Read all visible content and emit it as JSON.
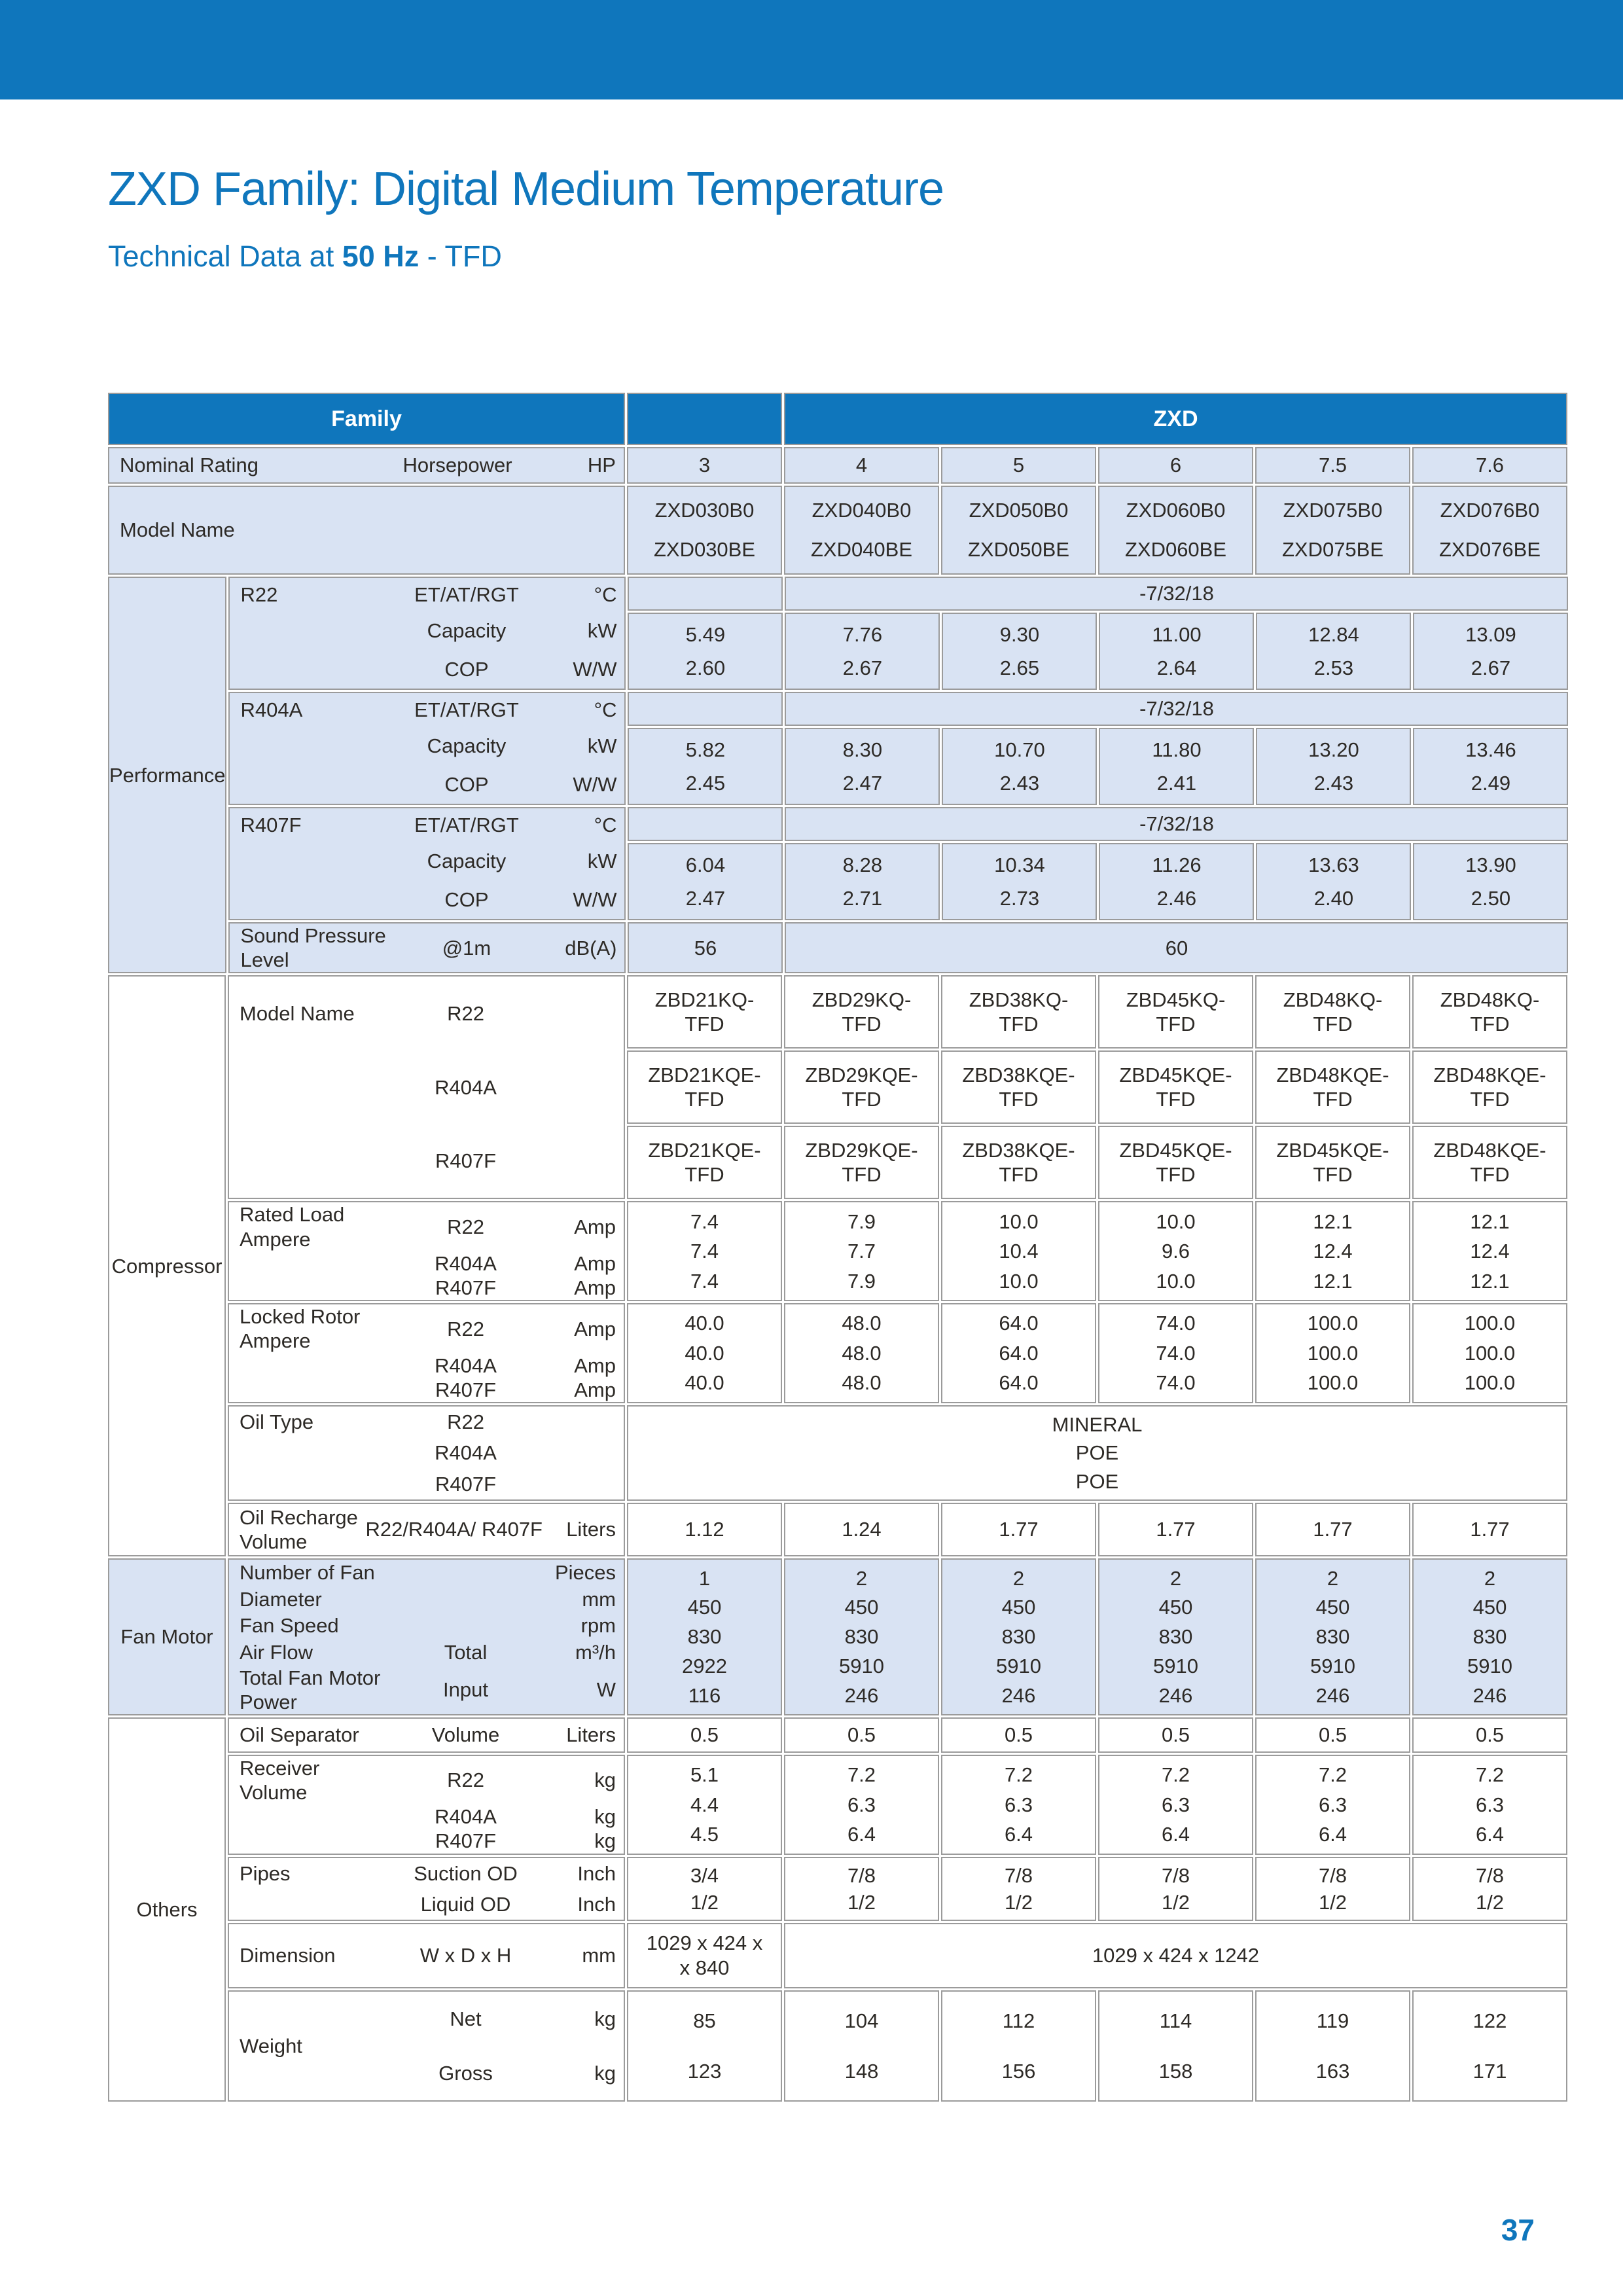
{
  "page": {
    "title": "ZXD Family: Digital Medium Temperature",
    "subtitle": {
      "prefix": "Technical Data at ",
      "bold": "50 Hz",
      "suffix": " - TFD"
    },
    "page_number": "37"
  },
  "colors": {
    "accent": "#0f76bc",
    "tint": "#d9e3f3",
    "border": "#9b9b9b",
    "text": "#2d2a26"
  },
  "table": {
    "header": {
      "family": "Family",
      "group": "ZXD"
    },
    "columns": [
      "3",
      "4",
      "5",
      "6",
      "7.5",
      "7.6"
    ],
    "sections": [
      {
        "label": null,
        "tint": true,
        "bands": [
          {
            "id": "nominal-rating",
            "kind": "row",
            "label": {
              "name": "Nominal Rating",
              "sub": "Horsepower",
              "unit": "HP"
            },
            "cells": {
              "type": "each",
              "values": [
                "3",
                "4",
                "5",
                "6",
                "7.5",
                "7.6"
              ]
            }
          },
          {
            "id": "model-name",
            "kind": "row",
            "label": {
              "name": "Model Name",
              "sub": "",
              "unit": ""
            },
            "cells": {
              "type": "stack",
              "columns": [
                [
                  "ZXD030B0",
                  "ZXD030BE"
                ],
                [
                  "ZXD040B0",
                  "ZXD040BE"
                ],
                [
                  "ZXD050B0",
                  "ZXD050BE"
                ],
                [
                  "ZXD060B0",
                  "ZXD060BE"
                ],
                [
                  "ZXD075B0",
                  "ZXD075BE"
                ],
                [
                  "ZXD076B0",
                  "ZXD076BE"
                ]
              ]
            }
          }
        ]
      },
      {
        "label": "Performance",
        "tint": true,
        "bands": [
          {
            "id": "r22",
            "kind": "group",
            "label": {
              "name": "R22",
              "lines": [
                {
                  "sub": "ET/AT/RGT",
                  "unit": "°C"
                },
                {
                  "sub": "Capacity",
                  "unit": "kW"
                },
                {
                  "sub": "COP",
                  "unit": "W/W"
                }
              ]
            },
            "rows": [
              {
                "id": "r22-cond",
                "cells": {
                  "type": "split",
                  "first": "",
                  "merged": "-7/32/18"
                }
              },
              {
                "id": "r22-vals",
                "cells": {
                  "type": "stack",
                  "columns": [
                    [
                      "5.49",
                      "2.60"
                    ],
                    [
                      "7.76",
                      "2.67"
                    ],
                    [
                      "9.30",
                      "2.65"
                    ],
                    [
                      "11.00",
                      "2.64"
                    ],
                    [
                      "12.84",
                      "2.53"
                    ],
                    [
                      "13.09",
                      "2.67"
                    ]
                  ]
                }
              }
            ]
          },
          {
            "id": "r404a",
            "kind": "group",
            "label": {
              "name": "R404A",
              "lines": [
                {
                  "sub": "ET/AT/RGT",
                  "unit": "°C"
                },
                {
                  "sub": "Capacity",
                  "unit": "kW"
                },
                {
                  "sub": "COP",
                  "unit": "W/W"
                }
              ]
            },
            "rows": [
              {
                "id": "r404a-cond",
                "cells": {
                  "type": "split",
                  "first": "",
                  "merged": "-7/32/18"
                }
              },
              {
                "id": "r404a-vals",
                "cells": {
                  "type": "stack",
                  "columns": [
                    [
                      "5.82",
                      "2.45"
                    ],
                    [
                      "8.30",
                      "2.47"
                    ],
                    [
                      "10.70",
                      "2.43"
                    ],
                    [
                      "11.80",
                      "2.41"
                    ],
                    [
                      "13.20",
                      "2.43"
                    ],
                    [
                      "13.46",
                      "2.49"
                    ]
                  ]
                }
              }
            ]
          },
          {
            "id": "r407f",
            "kind": "group",
            "label": {
              "name": "R407F",
              "lines": [
                {
                  "sub": "ET/AT/RGT",
                  "unit": "°C"
                },
                {
                  "sub": "Capacity",
                  "unit": "kW"
                },
                {
                  "sub": "COP",
                  "unit": "W/W"
                }
              ]
            },
            "rows": [
              {
                "id": "r407f-cond",
                "cells": {
                  "type": "split",
                  "first": "",
                  "merged": "-7/32/18"
                }
              },
              {
                "id": "r407f-vals",
                "cells": {
                  "type": "stack",
                  "columns": [
                    [
                      "6.04",
                      "2.47"
                    ],
                    [
                      "8.28",
                      "2.71"
                    ],
                    [
                      "10.34",
                      "2.73"
                    ],
                    [
                      "11.26",
                      "2.46"
                    ],
                    [
                      "13.63",
                      "2.40"
                    ],
                    [
                      "13.90",
                      "2.50"
                    ]
                  ]
                }
              }
            ]
          },
          {
            "id": "sound",
            "kind": "row",
            "label": {
              "name": "Sound Pressure Level",
              "sub": "@1m",
              "unit": "dB(A)"
            },
            "cells": {
              "type": "split",
              "first": "56",
              "merged": "60"
            }
          }
        ]
      },
      {
        "label": "Compressor",
        "tint": false,
        "bands": [
          {
            "id": "comp-model",
            "kind": "multi",
            "label": {
              "name": "Model Name",
              "lines": [
                {
                  "sub": "R22"
                },
                {
                  "sub": "R404A"
                },
                {
                  "sub": "R407F"
                }
              ]
            },
            "cells": {
              "type": "boxes",
              "columns": [
                [
                  "ZBD21KQ-\nTFD",
                  "ZBD21KQE-\nTFD",
                  "ZBD21KQE-\nTFD"
                ],
                [
                  "ZBD29KQ-\nTFD",
                  "ZBD29KQE-\nTFD",
                  "ZBD29KQE-\nTFD"
                ],
                [
                  "ZBD38KQ-\nTFD",
                  "ZBD38KQE-\nTFD",
                  "ZBD38KQE-\nTFD"
                ],
                [
                  "ZBD45KQ-\nTFD",
                  "ZBD45KQE-\nTFD",
                  "ZBD45KQE-\nTFD"
                ],
                [
                  "ZBD48KQ-\nTFD",
                  "ZBD48KQE-\nTFD",
                  "ZBD45KQE-\nTFD"
                ],
                [
                  "ZBD48KQ-\nTFD",
                  "ZBD48KQE-\nTFD",
                  "ZBD48KQE-\nTFD"
                ]
              ]
            }
          },
          {
            "id": "rated-load",
            "kind": "multi",
            "label": {
              "name": "Rated Load Ampere",
              "lines": [
                {
                  "sub": "R22",
                  "unit": "Amp"
                },
                {
                  "sub": "R404A",
                  "unit": "Amp"
                },
                {
                  "sub": "R407F",
                  "unit": "Amp"
                }
              ]
            },
            "cells": {
              "type": "stack",
              "columns": [
                [
                  "7.4",
                  "7.4",
                  "7.4"
                ],
                [
                  "7.9",
                  "7.7",
                  "7.9"
                ],
                [
                  "10.0",
                  "10.4",
                  "10.0"
                ],
                [
                  "10.0",
                  "9.6",
                  "10.0"
                ],
                [
                  "12.1",
                  "12.4",
                  "12.1"
                ],
                [
                  "12.1",
                  "12.4",
                  "12.1"
                ]
              ]
            }
          },
          {
            "id": "locked-rotor",
            "kind": "multi",
            "label": {
              "name": "Locked Rotor Ampere",
              "lines": [
                {
                  "sub": "R22",
                  "unit": "Amp"
                },
                {
                  "sub": "R404A",
                  "unit": "Amp"
                },
                {
                  "sub": "R407F",
                  "unit": "Amp"
                }
              ]
            },
            "cells": {
              "type": "stack",
              "columns": [
                [
                  "40.0",
                  "40.0",
                  "40.0"
                ],
                [
                  "48.0",
                  "48.0",
                  "48.0"
                ],
                [
                  "64.0",
                  "64.0",
                  "64.0"
                ],
                [
                  "74.0",
                  "74.0",
                  "74.0"
                ],
                [
                  "100.0",
                  "100.0",
                  "100.0"
                ],
                [
                  "100.0",
                  "100.0",
                  "100.0"
                ]
              ]
            }
          },
          {
            "id": "oil-type",
            "kind": "multi",
            "label": {
              "name": "Oil Type",
              "lines": [
                {
                  "sub": "R22"
                },
                {
                  "sub": "R404A"
                },
                {
                  "sub": "R407F"
                }
              ]
            },
            "cells": {
              "type": "mergedlines",
              "lines": [
                "MINERAL",
                "POE",
                "POE"
              ]
            }
          },
          {
            "id": "oil-recharge",
            "kind": "row",
            "label": {
              "name": "Oil Recharge\nVolume",
              "sub": "R22/R404A/ R407F",
              "unit": "Liters"
            },
            "cells": {
              "type": "each",
              "values": [
                "1.12",
                "1.24",
                "1.77",
                "1.77",
                "1.77",
                "1.77"
              ]
            }
          }
        ]
      },
      {
        "label": "Fan Motor",
        "tint": true,
        "bands": [
          {
            "id": "fan",
            "kind": "multi",
            "label": {
              "lines": [
                {
                  "name": "Number of Fan",
                  "unit": "Pieces"
                },
                {
                  "name": "Diameter",
                  "unit": "mm"
                },
                {
                  "name": "Fan Speed",
                  "unit": "rpm"
                },
                {
                  "name": "Air Flow",
                  "sub": "Total",
                  "unit": "m³/h"
                },
                {
                  "name": "Total Fan Motor Power",
                  "sub": "Input",
                  "unit": "W"
                }
              ]
            },
            "cells": {
              "type": "stack",
              "columns": [
                [
                  "1",
                  "450",
                  "830",
                  "2922",
                  "116"
                ],
                [
                  "2",
                  "450",
                  "830",
                  "5910",
                  "246"
                ],
                [
                  "2",
                  "450",
                  "830",
                  "5910",
                  "246"
                ],
                [
                  "2",
                  "450",
                  "830",
                  "5910",
                  "246"
                ],
                [
                  "2",
                  "450",
                  "830",
                  "5910",
                  "246"
                ],
                [
                  "2",
                  "450",
                  "830",
                  "5910",
                  "246"
                ]
              ]
            }
          }
        ]
      },
      {
        "label": "Others",
        "tint": false,
        "bands": [
          {
            "id": "oil-separator",
            "kind": "row",
            "label": {
              "name": "Oil Separator",
              "sub": "Volume",
              "unit": "Liters"
            },
            "cells": {
              "type": "each",
              "values": [
                "0.5",
                "0.5",
                "0.5",
                "0.5",
                "0.5",
                "0.5"
              ]
            }
          },
          {
            "id": "receiver",
            "kind": "multi",
            "label": {
              "name": "Receiver Volume",
              "lines": [
                {
                  "sub": "R22",
                  "unit": "kg"
                },
                {
                  "sub": "R404A",
                  "unit": "kg"
                },
                {
                  "sub": "R407F",
                  "unit": "kg"
                }
              ]
            },
            "cells": {
              "type": "stack",
              "columns": [
                [
                  "5.1",
                  "4.4",
                  "4.5"
                ],
                [
                  "7.2",
                  "6.3",
                  "6.4"
                ],
                [
                  "7.2",
                  "6.3",
                  "6.4"
                ],
                [
                  "7.2",
                  "6.3",
                  "6.4"
                ],
                [
                  "7.2",
                  "6.3",
                  "6.4"
                ],
                [
                  "7.2",
                  "6.3",
                  "6.4"
                ]
              ]
            }
          },
          {
            "id": "pipes",
            "kind": "multi",
            "label": {
              "name": "Pipes",
              "lines": [
                {
                  "sub": "Suction OD",
                  "unit": "Inch"
                },
                {
                  "sub": "Liquid OD",
                  "unit": "Inch"
                }
              ]
            },
            "cells": {
              "type": "stack",
              "columns": [
                [
                  "3/4",
                  "1/2"
                ],
                [
                  "7/8",
                  "1/2"
                ],
                [
                  "7/8",
                  "1/2"
                ],
                [
                  "7/8",
                  "1/2"
                ],
                [
                  "7/8",
                  "1/2"
                ],
                [
                  "7/8",
                  "1/2"
                ]
              ]
            }
          },
          {
            "id": "dimension",
            "kind": "row",
            "label": {
              "name": "Dimension",
              "sub": "W x D x H",
              "unit": "mm"
            },
            "cells": {
              "type": "split",
              "first": "1029 x 424 x\nx 840",
              "merged": "1029 x 424 x 1242"
            }
          },
          {
            "id": "weight",
            "kind": "multi",
            "label": {
              "name": "Weight",
              "nameCenter": true,
              "lines": [
                {
                  "sub": "Net",
                  "unit": "kg"
                },
                {
                  "sub": "Gross",
                  "unit": "kg"
                }
              ]
            },
            "cells": {
              "type": "stack",
              "columns": [
                [
                  "85",
                  "123"
                ],
                [
                  "104",
                  "148"
                ],
                [
                  "112",
                  "156"
                ],
                [
                  "114",
                  "158"
                ],
                [
                  "119",
                  "163"
                ],
                [
                  "122",
                  "171"
                ]
              ]
            }
          }
        ]
      }
    ]
  }
}
